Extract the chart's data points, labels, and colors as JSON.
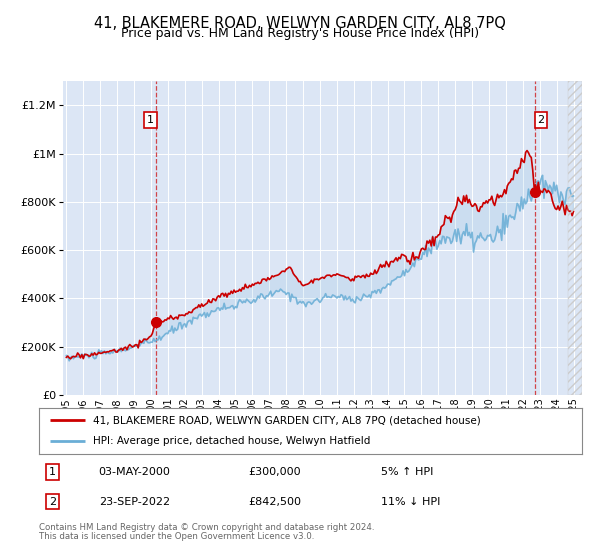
{
  "title": "41, BLAKEMERE ROAD, WELWYN GARDEN CITY, AL8 7PQ",
  "subtitle": "Price paid vs. HM Land Registry's House Price Index (HPI)",
  "legend_line1": "41, BLAKEMERE ROAD, WELWYN GARDEN CITY, AL8 7PQ (detached house)",
  "legend_line2": "HPI: Average price, detached house, Welwyn Hatfield",
  "annotation1_date": "03-MAY-2000",
  "annotation1_price": "£300,000",
  "annotation1_hpi": "5% ↑ HPI",
  "annotation2_date": "23-SEP-2022",
  "annotation2_price": "£842,500",
  "annotation2_hpi": "11% ↓ HPI",
  "footer1": "Contains HM Land Registry data © Crown copyright and database right 2024.",
  "footer2": "This data is licensed under the Open Government Licence v3.0.",
  "ylim": [
    0,
    1300000
  ],
  "yticks": [
    0,
    200000,
    400000,
    600000,
    800000,
    1000000,
    1200000
  ],
  "ytick_labels": [
    "£0",
    "£200K",
    "£400K",
    "£600K",
    "£800K",
    "£1M",
    "£1.2M"
  ],
  "bg_color": "#dce6f5",
  "hpi_color": "#6aaed6",
  "price_color": "#cc0000",
  "sale1_x": 2000.33,
  "sale1_y": 300000,
  "sale2_x": 2022.72,
  "sale2_y": 842500,
  "xmin": 1994.8,
  "xmax": 2025.5,
  "xticks": [
    1995,
    1996,
    1997,
    1998,
    1999,
    2000,
    2001,
    2002,
    2003,
    2004,
    2005,
    2006,
    2007,
    2008,
    2009,
    2010,
    2011,
    2012,
    2013,
    2014,
    2015,
    2016,
    2017,
    2018,
    2019,
    2020,
    2021,
    2022,
    2023,
    2024,
    2025
  ]
}
